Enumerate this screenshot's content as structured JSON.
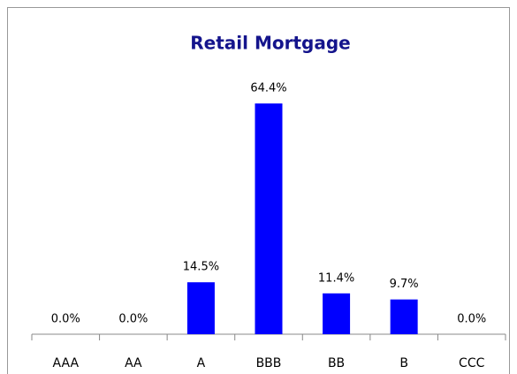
{
  "chart_data": {
    "type": "bar",
    "title": "Retail Mortgage",
    "categories": [
      "AAA",
      "AA",
      "A",
      "BBB",
      "BB",
      "B",
      "CCC"
    ],
    "values": [
      0,
      0,
      14.5,
      64.4,
      11.4,
      9.7,
      0
    ],
    "value_labels": [
      "0.0%",
      "0.0%",
      "14.5%",
      "64.4%",
      "11.4%",
      "9.7%",
      "0.0%"
    ],
    "color": "#0000ff"
  }
}
